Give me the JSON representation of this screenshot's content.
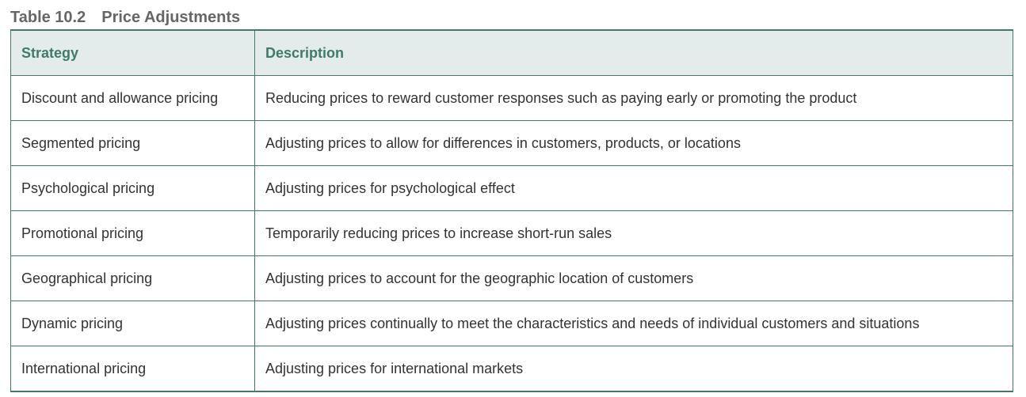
{
  "caption": {
    "number": "Table 10.2",
    "title": "Price Adjustments"
  },
  "table": {
    "headers": [
      "Strategy",
      "Description"
    ],
    "rows": [
      [
        "Discount and allowance pricing",
        "Reducing prices to reward customer responses such as paying early or promoting the product"
      ],
      [
        "Segmented pricing",
        "Adjusting prices to allow for differences in customers, products, or locations"
      ],
      [
        "Psychological pricing",
        "Adjusting prices for psychological effect"
      ],
      [
        "Promotional pricing",
        "Temporarily reducing prices to increase short-run sales"
      ],
      [
        "Geographical pricing",
        "Adjusting prices to account for the geographic location of customers"
      ],
      [
        "Dynamic pricing",
        "Adjusting prices continually to meet the characteristics and needs of individual customers and situations"
      ],
      [
        "International pricing",
        "Adjusting prices for international markets"
      ]
    ]
  },
  "colors": {
    "accent": "#3f7a6a",
    "header_background": "#e3eceb",
    "caption_text": "#666666",
    "body_text": "#333333"
  }
}
